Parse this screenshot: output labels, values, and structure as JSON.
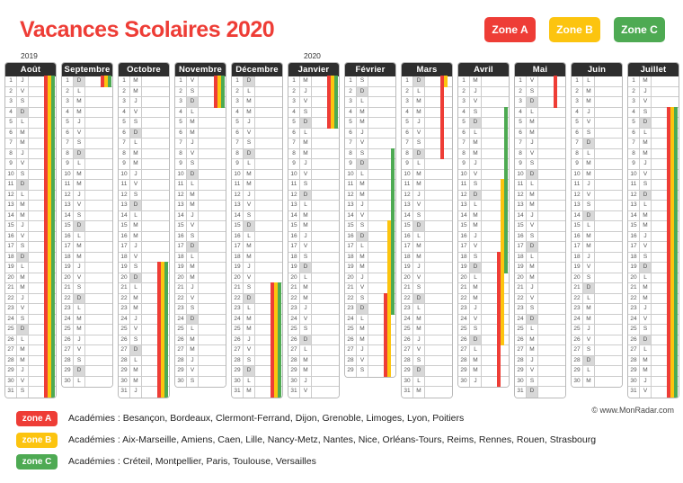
{
  "title": "Vacances Scolaires 2020",
  "zone_buttons": [
    {
      "label": "Zone A",
      "color": "#ee3d36"
    },
    {
      "label": "Zone B",
      "color": "#fcc40f"
    },
    {
      "label": "Zone C",
      "color": "#4eaa53"
    }
  ],
  "colors": {
    "zone_a": "#ee3d36",
    "zone_b": "#fcc40f",
    "zone_c": "#4eaa53",
    "month_header_bg": "#2e2e2e",
    "sunday_bg": "#d8d8d8",
    "title": "#ee3d36"
  },
  "calendar": {
    "day_letters": [
      "L",
      "M",
      "M",
      "J",
      "V",
      "S",
      "D"
    ],
    "sunday_index": 6,
    "year_labels": [
      "2019",
      "2020"
    ],
    "months": [
      {
        "name": "Août",
        "year_label": "2019",
        "days": 31,
        "first_weekday": 3,
        "zone_a": [
          [
            1,
            31
          ]
        ],
        "zone_b": [
          [
            1,
            31
          ]
        ],
        "zone_c": [
          [
            1,
            31
          ]
        ]
      },
      {
        "name": "Septembre",
        "year_label": "",
        "days": 30,
        "first_weekday": 6,
        "zone_a": [
          [
            1,
            1
          ]
        ],
        "zone_b": [
          [
            1,
            1
          ]
        ],
        "zone_c": [
          [
            1,
            1
          ]
        ]
      },
      {
        "name": "Octobre",
        "year_label": "",
        "days": 31,
        "first_weekday": 1,
        "zone_a": [
          [
            19,
            31
          ]
        ],
        "zone_b": [
          [
            19,
            31
          ]
        ],
        "zone_c": [
          [
            19,
            31
          ]
        ]
      },
      {
        "name": "Novembre",
        "year_label": "",
        "days": 30,
        "first_weekday": 4,
        "zone_a": [
          [
            1,
            3
          ]
        ],
        "zone_b": [
          [
            1,
            3
          ]
        ],
        "zone_c": [
          [
            1,
            3
          ]
        ]
      },
      {
        "name": "Décembre",
        "year_label": "",
        "days": 31,
        "first_weekday": 6,
        "zone_a": [
          [
            21,
            31
          ]
        ],
        "zone_b": [
          [
            21,
            31
          ]
        ],
        "zone_c": [
          [
            21,
            31
          ]
        ]
      },
      {
        "name": "Janvier",
        "year_label": "2020",
        "days": 31,
        "first_weekday": 2,
        "zone_a": [
          [
            1,
            5
          ]
        ],
        "zone_b": [
          [
            1,
            5
          ]
        ],
        "zone_c": [
          [
            1,
            5
          ]
        ]
      },
      {
        "name": "Février",
        "year_label": "",
        "days": 29,
        "first_weekday": 5,
        "zone_a": [
          [
            22,
            29
          ]
        ],
        "zone_b": [
          [
            15,
            29
          ]
        ],
        "zone_c": [
          [
            8,
            23
          ]
        ]
      },
      {
        "name": "Mars",
        "year_label": "",
        "days": 31,
        "first_weekday": 6,
        "zone_a": [
          [
            1,
            8
          ]
        ],
        "zone_b": [
          [
            1,
            1
          ]
        ],
        "zone_c": []
      },
      {
        "name": "Avril",
        "year_label": "",
        "days": 30,
        "first_weekday": 2,
        "zone_a": [
          [
            18,
            30
          ]
        ],
        "zone_b": [
          [
            11,
            26
          ]
        ],
        "zone_c": [
          [
            4,
            19
          ]
        ]
      },
      {
        "name": "Mai",
        "year_label": "",
        "days": 31,
        "first_weekday": 4,
        "zone_a": [
          [
            1,
            3
          ]
        ],
        "zone_b": [],
        "zone_c": []
      },
      {
        "name": "Juin",
        "year_label": "",
        "days": 30,
        "first_weekday": 0,
        "zone_a": [],
        "zone_b": [],
        "zone_c": []
      },
      {
        "name": "Juillet",
        "year_label": "",
        "days": 31,
        "first_weekday": 2,
        "zone_a": [
          [
            4,
            31
          ]
        ],
        "zone_b": [
          [
            4,
            31
          ]
        ],
        "zone_c": [
          [
            4,
            31
          ]
        ]
      }
    ]
  },
  "legend": [
    {
      "pill": "zone A",
      "color": "#ee3d36",
      "academies": "Académies : Besançon, Bordeaux, Clermont-Ferrand, Dijon, Grenoble, Limoges, Lyon, Poitiers"
    },
    {
      "pill": "zone B",
      "color": "#fcc40f",
      "academies": "Académies : Aix-Marseille, Amiens, Caen, Lille, Nancy-Metz, Nantes, Nice, Orléans-Tours, Reims, Rennes, Rouen, Strasbourg"
    },
    {
      "pill": "zone C",
      "color": "#4eaa53",
      "academies": "Académies : Créteil, Montpellier, Paris, Toulouse, Versailles"
    }
  ],
  "copyright": "© www.MonRadar.com"
}
